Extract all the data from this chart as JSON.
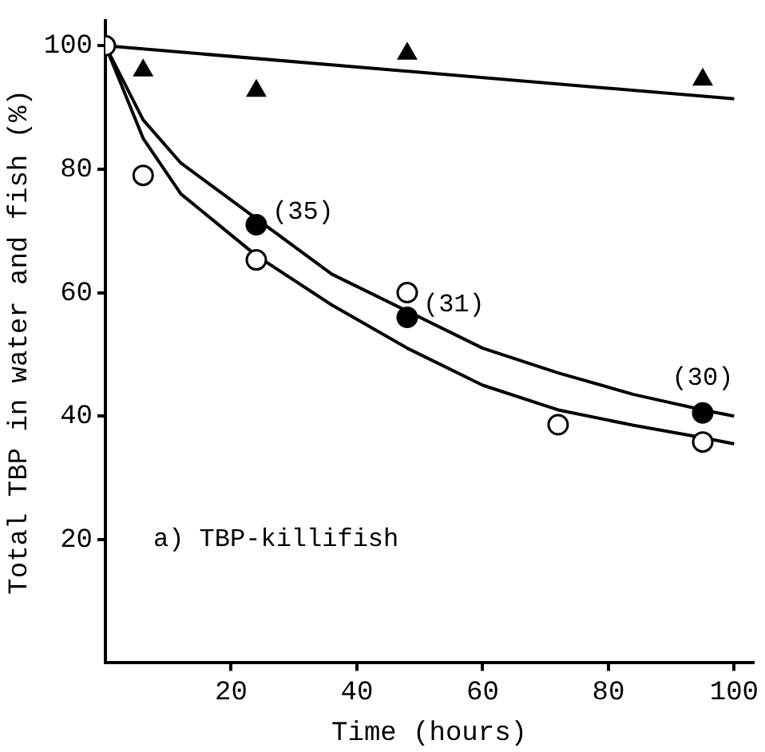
{
  "chart_data": {
    "type": "scatter",
    "xlabel": "Time (hours)",
    "ylabel": "Total TBP in water and fish (%)",
    "xlim": [
      0,
      103
    ],
    "ylim": [
      0,
      104
    ],
    "xticks": [
      20,
      40,
      60,
      80,
      100
    ],
    "yticks": [
      20,
      40,
      60,
      80,
      100
    ],
    "grid": false,
    "legend": false,
    "series": [
      {
        "type": "line",
        "color": "#000000",
        "marker": "none",
        "x": [
          0,
          100
        ],
        "values": [
          100,
          91.4
        ]
      },
      {
        "type": "line",
        "color": "#000000",
        "marker": "none",
        "x": [
          0,
          6,
          12,
          24,
          36,
          48,
          60,
          72,
          84,
          95,
          100
        ],
        "values": [
          100,
          88,
          81,
          72,
          63,
          57,
          51,
          47,
          43.5,
          41,
          40
        ]
      },
      {
        "type": "line",
        "color": "#000000",
        "marker": "none",
        "x": [
          0,
          6,
          12,
          24,
          36,
          48,
          60,
          72,
          84,
          95,
          100
        ],
        "values": [
          100,
          85,
          76,
          66,
          58,
          51,
          45,
          41,
          38.5,
          36.5,
          35.5
        ]
      },
      {
        "type": "scatter",
        "color": "#000000",
        "marker": "triangle",
        "x": [
          6,
          24,
          48,
          95
        ],
        "values": [
          96,
          92.7,
          98.7,
          94.5
        ]
      },
      {
        "type": "scatter",
        "color": "#ffffff",
        "marker": "circle",
        "x": [
          0,
          6,
          24,
          48,
          72,
          95
        ],
        "values": [
          100,
          79,
          65.3,
          60,
          38.6,
          35.8
        ]
      },
      {
        "type": "scatter",
        "color": "#000000",
        "marker": "circle",
        "x": [
          24,
          48,
          95
        ],
        "values": [
          71,
          56,
          40.5
        ]
      }
    ],
    "annotations": [
      {
        "text": "(35)",
        "x": 24,
        "y": 71
      },
      {
        "text": "(31)",
        "x": 48,
        "y": 56
      },
      {
        "text": "(30)",
        "x": 95,
        "y": 40.5
      },
      "a) TBP-killifish"
    ]
  }
}
